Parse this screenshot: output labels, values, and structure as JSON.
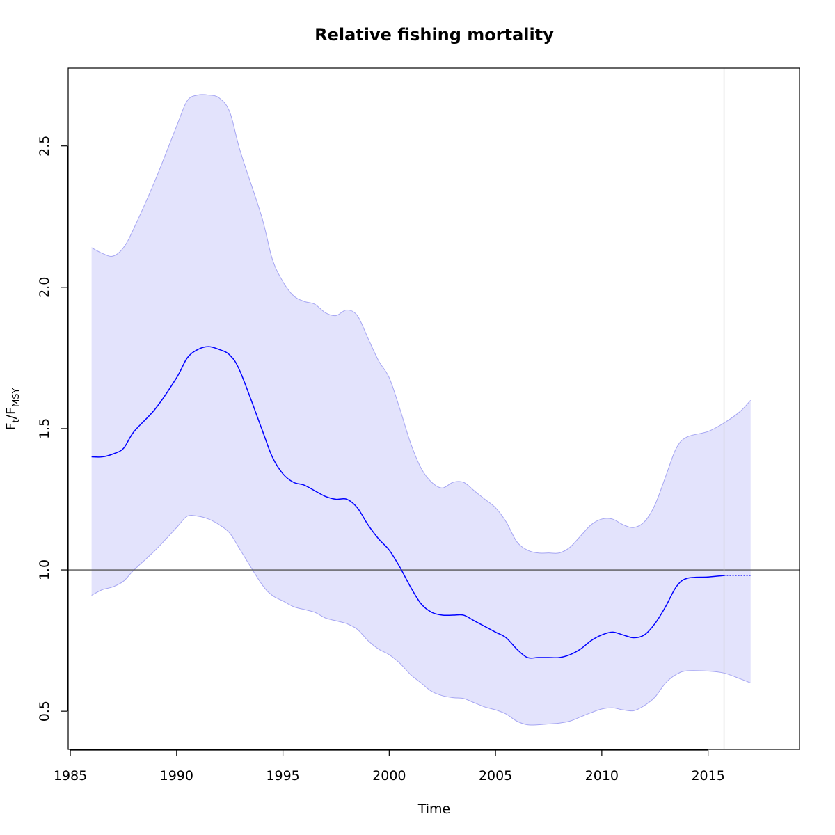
{
  "chart_data": {
    "type": "area",
    "title": "Relative fishing mortality",
    "xlabel": "Time",
    "ylabel": {
      "main": "F",
      "sub1": "t",
      "slash": "/",
      "main2": "F",
      "sub2": "MSY"
    },
    "xlim": [
      1984.9,
      2019.3
    ],
    "ylim": [
      0.365,
      2.775
    ],
    "x_ticks": [
      1985,
      1990,
      1995,
      2000,
      2005,
      2010,
      2015
    ],
    "x_tick_labels": [
      "1985",
      "1990",
      "1995",
      "2000",
      "2005",
      "2010",
      "2015"
    ],
    "y_ticks": [
      0.5,
      1.0,
      1.5,
      2.0,
      2.5
    ],
    "y_tick_labels": [
      "0.5",
      "1.0",
      "1.5",
      "2.0",
      "2.5"
    ],
    "reference_line_y": 1.0,
    "current_year_line_x": 2015.75,
    "colors": {
      "line": "#0000ff",
      "band_fill": "#e3e3fc",
      "band_edge": "#a5a5f2",
      "ref_line": "#555555",
      "vline": "#c8c8c8",
      "axis": "#000000"
    },
    "series": [
      {
        "estimate": {
          "x": [
            1986,
            1986.5,
            1987,
            1987.5,
            1988,
            1989,
            1990,
            1990.5,
            1991,
            1991.5,
            1992,
            1992.5,
            1993,
            1994,
            1994.5,
            1995,
            1995.5,
            1996,
            1996.5,
            1997,
            1997.5,
            1998,
            1998.5,
            1999,
            1999.5,
            2000,
            2000.5,
            2001,
            2001.5,
            2002,
            2002.5,
            2003,
            2003.5,
            2004,
            2004.5,
            2005,
            2005.5,
            2006,
            2006.5,
            2007,
            2007.5,
            2008,
            2008.5,
            2009,
            2009.5,
            2010,
            2010.5,
            2011,
            2011.5,
            2012,
            2012.5,
            2013,
            2013.5,
            2014,
            2015,
            2015.75
          ],
          "y": [
            1.4,
            1.4,
            1.41,
            1.43,
            1.49,
            1.57,
            1.68,
            1.75,
            1.78,
            1.79,
            1.78,
            1.76,
            1.7,
            1.5,
            1.4,
            1.34,
            1.31,
            1.3,
            1.28,
            1.26,
            1.25,
            1.25,
            1.22,
            1.16,
            1.11,
            1.07,
            1.01,
            0.94,
            0.88,
            0.85,
            0.84,
            0.84,
            0.84,
            0.82,
            0.8,
            0.78,
            0.76,
            0.72,
            0.69,
            0.69,
            0.69,
            0.69,
            0.7,
            0.72,
            0.75,
            0.77,
            0.78,
            0.77,
            0.76,
            0.77,
            0.81,
            0.87,
            0.94,
            0.97,
            0.975,
            0.98
          ]
        },
        "projection": {
          "x": [
            2015.75,
            2016.5,
            2017
          ],
          "y": [
            0.98,
            0.98,
            0.98
          ]
        },
        "upper": {
          "x": [
            1986,
            1986.5,
            1987,
            1987.5,
            1988,
            1989,
            1990,
            1990.5,
            1991,
            1991.5,
            1992,
            1992.5,
            1993,
            1994,
            1994.5,
            1995,
            1995.5,
            1996,
            1996.5,
            1997,
            1997.5,
            1998,
            1998.5,
            1999,
            1999.5,
            2000,
            2000.5,
            2001,
            2001.5,
            2002,
            2002.5,
            2003,
            2003.5,
            2004,
            2004.5,
            2005,
            2005.5,
            2006,
            2006.5,
            2007,
            2007.5,
            2008,
            2008.5,
            2009,
            2009.5,
            2010,
            2010.5,
            2011,
            2011.5,
            2012,
            2012.5,
            2013,
            2013.5,
            2014,
            2015,
            2015.75,
            2016.5,
            2017
          ],
          "y": [
            2.14,
            2.12,
            2.11,
            2.14,
            2.21,
            2.38,
            2.57,
            2.66,
            2.68,
            2.68,
            2.67,
            2.62,
            2.48,
            2.25,
            2.1,
            2.02,
            1.97,
            1.95,
            1.94,
            1.91,
            1.9,
            1.92,
            1.9,
            1.82,
            1.74,
            1.68,
            1.57,
            1.45,
            1.36,
            1.31,
            1.29,
            1.31,
            1.31,
            1.28,
            1.25,
            1.22,
            1.17,
            1.1,
            1.07,
            1.06,
            1.06,
            1.06,
            1.08,
            1.12,
            1.16,
            1.18,
            1.18,
            1.16,
            1.15,
            1.17,
            1.23,
            1.33,
            1.43,
            1.47,
            1.49,
            1.52,
            1.56,
            1.6
          ]
        },
        "lower": {
          "x": [
            1986,
            1986.5,
            1987,
            1987.5,
            1988,
            1989,
            1990,
            1990.5,
            1991,
            1991.5,
            1992,
            1992.5,
            1993,
            1994,
            1994.5,
            1995,
            1995.5,
            1996,
            1996.5,
            1997,
            1997.5,
            1998,
            1998.5,
            1999,
            1999.5,
            2000,
            2000.5,
            2001,
            2001.5,
            2002,
            2002.5,
            2003,
            2003.5,
            2004,
            2004.5,
            2005,
            2005.5,
            2006,
            2006.5,
            2007,
            2007.5,
            2008,
            2008.5,
            2009,
            2009.5,
            2010,
            2010.5,
            2011,
            2011.5,
            2012,
            2012.5,
            2013,
            2013.5,
            2014,
            2015,
            2015.75,
            2016.5,
            2017
          ],
          "y": [
            0.91,
            0.93,
            0.94,
            0.96,
            1.0,
            1.07,
            1.15,
            1.19,
            1.19,
            1.18,
            1.16,
            1.13,
            1.07,
            0.95,
            0.91,
            0.89,
            0.87,
            0.86,
            0.85,
            0.83,
            0.82,
            0.81,
            0.79,
            0.75,
            0.72,
            0.7,
            0.67,
            0.63,
            0.6,
            0.57,
            0.555,
            0.548,
            0.545,
            0.53,
            0.515,
            0.505,
            0.49,
            0.465,
            0.452,
            0.452,
            0.455,
            0.458,
            0.465,
            0.48,
            0.495,
            0.508,
            0.512,
            0.505,
            0.502,
            0.52,
            0.55,
            0.6,
            0.63,
            0.643,
            0.642,
            0.635,
            0.615,
            0.6
          ]
        }
      }
    ]
  }
}
